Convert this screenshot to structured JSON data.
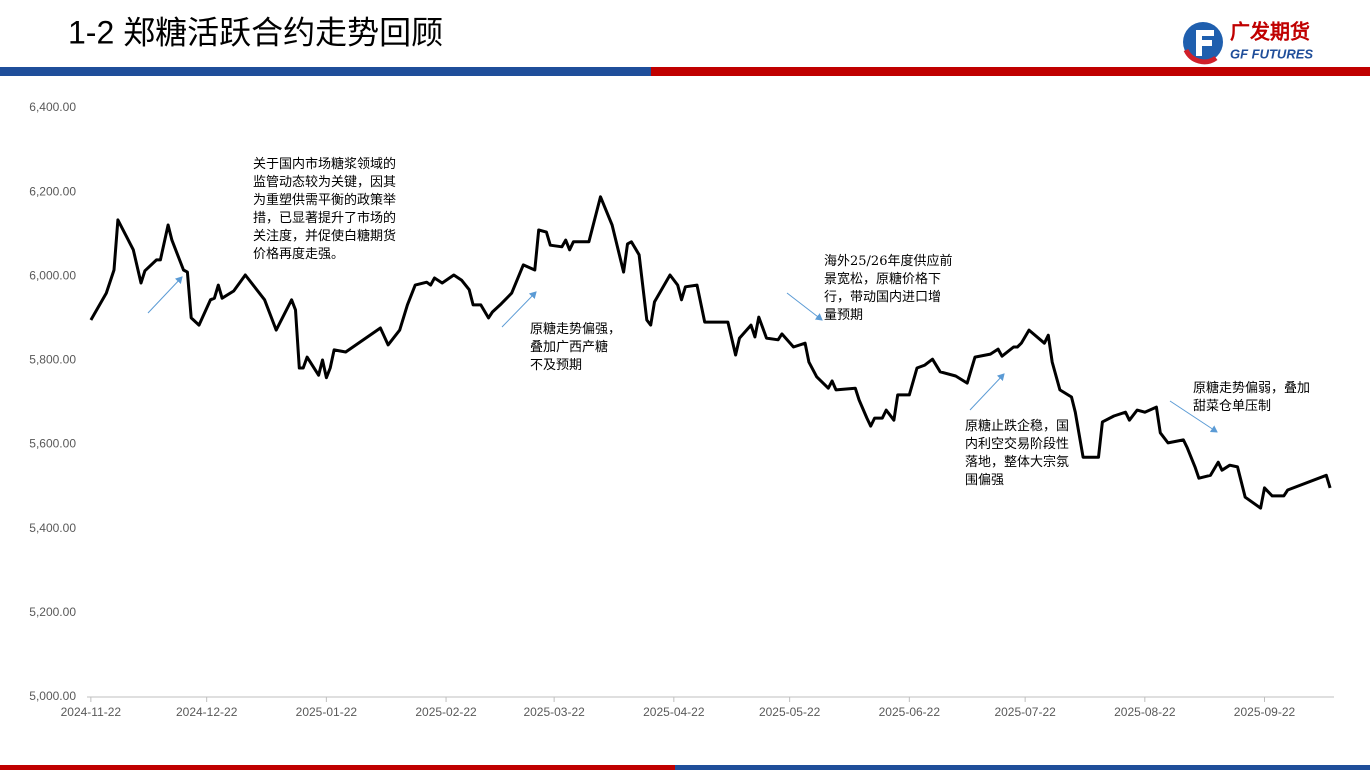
{
  "header": {
    "title": "1-2 郑糖活跃合约走势回顾",
    "logo_cn": "广发期货",
    "logo_en": "GF FUTURES"
  },
  "chart_data": {
    "type": "line",
    "color": "#000000",
    "x": [
      "2024-11-22",
      "2024-11-26",
      "2024-11-28",
      "2024-11-29",
      "2024-12-03",
      "2024-12-05",
      "2024-12-06",
      "2024-12-09",
      "2024-12-10",
      "2024-12-12",
      "2024-12-13",
      "2024-12-16",
      "2024-12-17",
      "2024-12-18",
      "2024-12-20",
      "2024-12-23",
      "2024-12-24",
      "2024-12-25",
      "2024-12-26",
      "2024-12-29",
      "2025-01-01",
      "2025-01-06",
      "2025-01-09",
      "2025-01-13",
      "2025-01-14",
      "2025-01-15",
      "2025-01-16",
      "2025-01-17",
      "2025-01-20",
      "2025-01-21",
      "2025-01-22",
      "2025-01-23",
      "2025-01-24",
      "2025-01-27",
      "2025-02-05",
      "2025-02-07",
      "2025-02-10",
      "2025-02-12",
      "2025-02-14",
      "2025-02-17",
      "2025-02-18",
      "2025-02-19",
      "2025-02-21",
      "2025-02-24",
      "2025-02-26",
      "2025-02-28",
      "2025-03-01",
      "2025-03-03",
      "2025-03-05",
      "2025-03-06",
      "2025-03-08",
      "2025-03-11",
      "2025-03-14",
      "2025-03-17",
      "2025-03-18",
      "2025-03-20",
      "2025-03-21",
      "2025-03-24",
      "2025-03-25",
      "2025-03-26",
      "2025-03-27",
      "2025-03-31",
      "2025-04-03",
      "2025-04-06",
      "2025-04-09",
      "2025-04-10",
      "2025-04-11",
      "2025-04-13",
      "2025-04-15",
      "2025-04-16",
      "2025-04-17",
      "2025-04-21",
      "2025-04-23",
      "2025-04-24",
      "2025-04-25",
      "2025-04-28",
      "2025-04-30",
      "2025-05-06",
      "2025-05-08",
      "2025-05-09",
      "2025-05-12",
      "2025-05-13",
      "2025-05-14",
      "2025-05-16",
      "2025-05-19",
      "2025-05-20",
      "2025-05-23",
      "2025-05-26",
      "2025-05-27",
      "2025-05-29",
      "2025-06-01",
      "2025-06-02",
      "2025-06-03",
      "2025-06-08",
      "2025-06-09",
      "2025-06-11",
      "2025-06-12",
      "2025-06-13",
      "2025-06-15",
      "2025-06-16",
      "2025-06-18",
      "2025-06-19",
      "2025-06-22",
      "2025-06-24",
      "2025-06-26",
      "2025-06-28",
      "2025-06-30",
      "2025-07-04",
      "2025-07-07",
      "2025-07-09",
      "2025-07-13",
      "2025-07-15",
      "2025-07-16",
      "2025-07-19",
      "2025-07-20",
      "2025-07-21",
      "2025-07-23",
      "2025-07-27",
      "2025-07-28",
      "2025-07-29",
      "2025-07-31",
      "2025-08-03",
      "2025-08-04",
      "2025-08-06",
      "2025-08-10",
      "2025-08-11",
      "2025-08-14",
      "2025-08-17",
      "2025-08-18",
      "2025-08-20",
      "2025-08-22",
      "2025-08-25",
      "2025-08-26",
      "2025-08-28",
      "2025-09-01",
      "2025-09-02",
      "2025-09-04",
      "2025-09-05",
      "2025-09-08",
      "2025-09-10",
      "2025-09-11",
      "2025-09-13",
      "2025-09-15",
      "2025-09-17",
      "2025-09-21",
      "2025-09-22",
      "2025-09-24",
      "2025-09-27",
      "2025-09-28",
      "2025-10-08",
      "2025-10-09"
    ],
    "values": [
      5896,
      5960,
      6015,
      6134,
      6063,
      5984,
      6013,
      6039,
      6039,
      6122,
      6086,
      6015,
      6010,
      5901,
      5884,
      5944,
      5948,
      5979,
      5948,
      5965,
      6003,
      5944,
      5872,
      5944,
      5920,
      5782,
      5782,
      5808,
      5765,
      5801,
      5759,
      5782,
      5825,
      5820,
      5877,
      5837,
      5872,
      5932,
      5979,
      5986,
      5979,
      5996,
      5984,
      6003,
      5991,
      5968,
      5932,
      5932,
      5901,
      5915,
      5932,
      5960,
      6027,
      6015,
      6110,
      6105,
      6074,
      6070,
      6086,
      6063,
      6082,
      6082,
      6189,
      6122,
      6010,
      6077,
      6082,
      6051,
      5896,
      5884,
      5939,
      6003,
      5979,
      5944,
      5975,
      5979,
      5891,
      5891,
      5813,
      5853,
      5884,
      5856,
      5903,
      5853,
      5849,
      5863,
      5832,
      5841,
      5796,
      5761,
      5734,
      5751,
      5730,
      5734,
      5706,
      5663,
      5644,
      5663,
      5663,
      5682,
      5658,
      5718,
      5718,
      5782,
      5789,
      5803,
      5773,
      5763,
      5746,
      5808,
      5815,
      5827,
      5810,
      5832,
      5832,
      5841,
      5872,
      5841,
      5860,
      5796,
      5730,
      5713,
      5677,
      5570,
      5570,
      5654,
      5668,
      5677,
      5658,
      5682,
      5677,
      5689,
      5628,
      5604,
      5611,
      5592,
      5547,
      5520,
      5527,
      5558,
      5539,
      5551,
      5547,
      5475,
      5449,
      5497,
      5478,
      5478,
      5492,
      5527,
      5497
    ],
    "xlim": [
      "2024-11-21",
      "2025-10-10"
    ],
    "xticks": [
      "2024-11-22",
      "2024-12-22",
      "2025-01-22",
      "2025-02-22",
      "2025-03-22",
      "2025-04-22",
      "2025-05-22",
      "2025-06-22",
      "2025-07-22",
      "2025-08-22",
      "2025-09-22"
    ],
    "ylim": [
      5000,
      6400
    ],
    "yticks": [
      {
        "value": 5000,
        "label": "5,000.00"
      },
      {
        "value": 5200,
        "label": "5,200.00"
      },
      {
        "value": 5400,
        "label": "5,400.00"
      },
      {
        "value": 5600,
        "label": "5,600.00"
      },
      {
        "value": 5800,
        "label": "5,800.00"
      },
      {
        "value": 6000,
        "label": "6,000.00"
      },
      {
        "value": 6200,
        "label": "6,200.00"
      },
      {
        "value": 6400,
        "label": "6,400.00"
      }
    ],
    "annotations": [
      {
        "lines": [
          "关于国内市场糖浆领域的",
          "监管动态较为关键，因其",
          "为重塑供需平衡的政策举",
          "措，已显著提升了市场的",
          "关注度，并促使白糖期货",
          "价格再度走强。"
        ]
      },
      {
        "lines": [
          "原糖走势偏强，",
          "叠加广西产糖",
          "不及预期"
        ]
      },
      {
        "lines": [
          "海外25/26年度供应前",
          "景宽松，原糖价格下",
          "行，带动国内进口增",
          "量预期"
        ]
      },
      {
        "lines": [
          "原糖止跌企稳，国",
          "内利空交易阶段性",
          "落地，整体大宗氛",
          "围偏强"
        ]
      },
      {
        "lines": [
          "原糖走势偏弱，叠加",
          "甜菜仓单压制"
        ]
      }
    ]
  }
}
